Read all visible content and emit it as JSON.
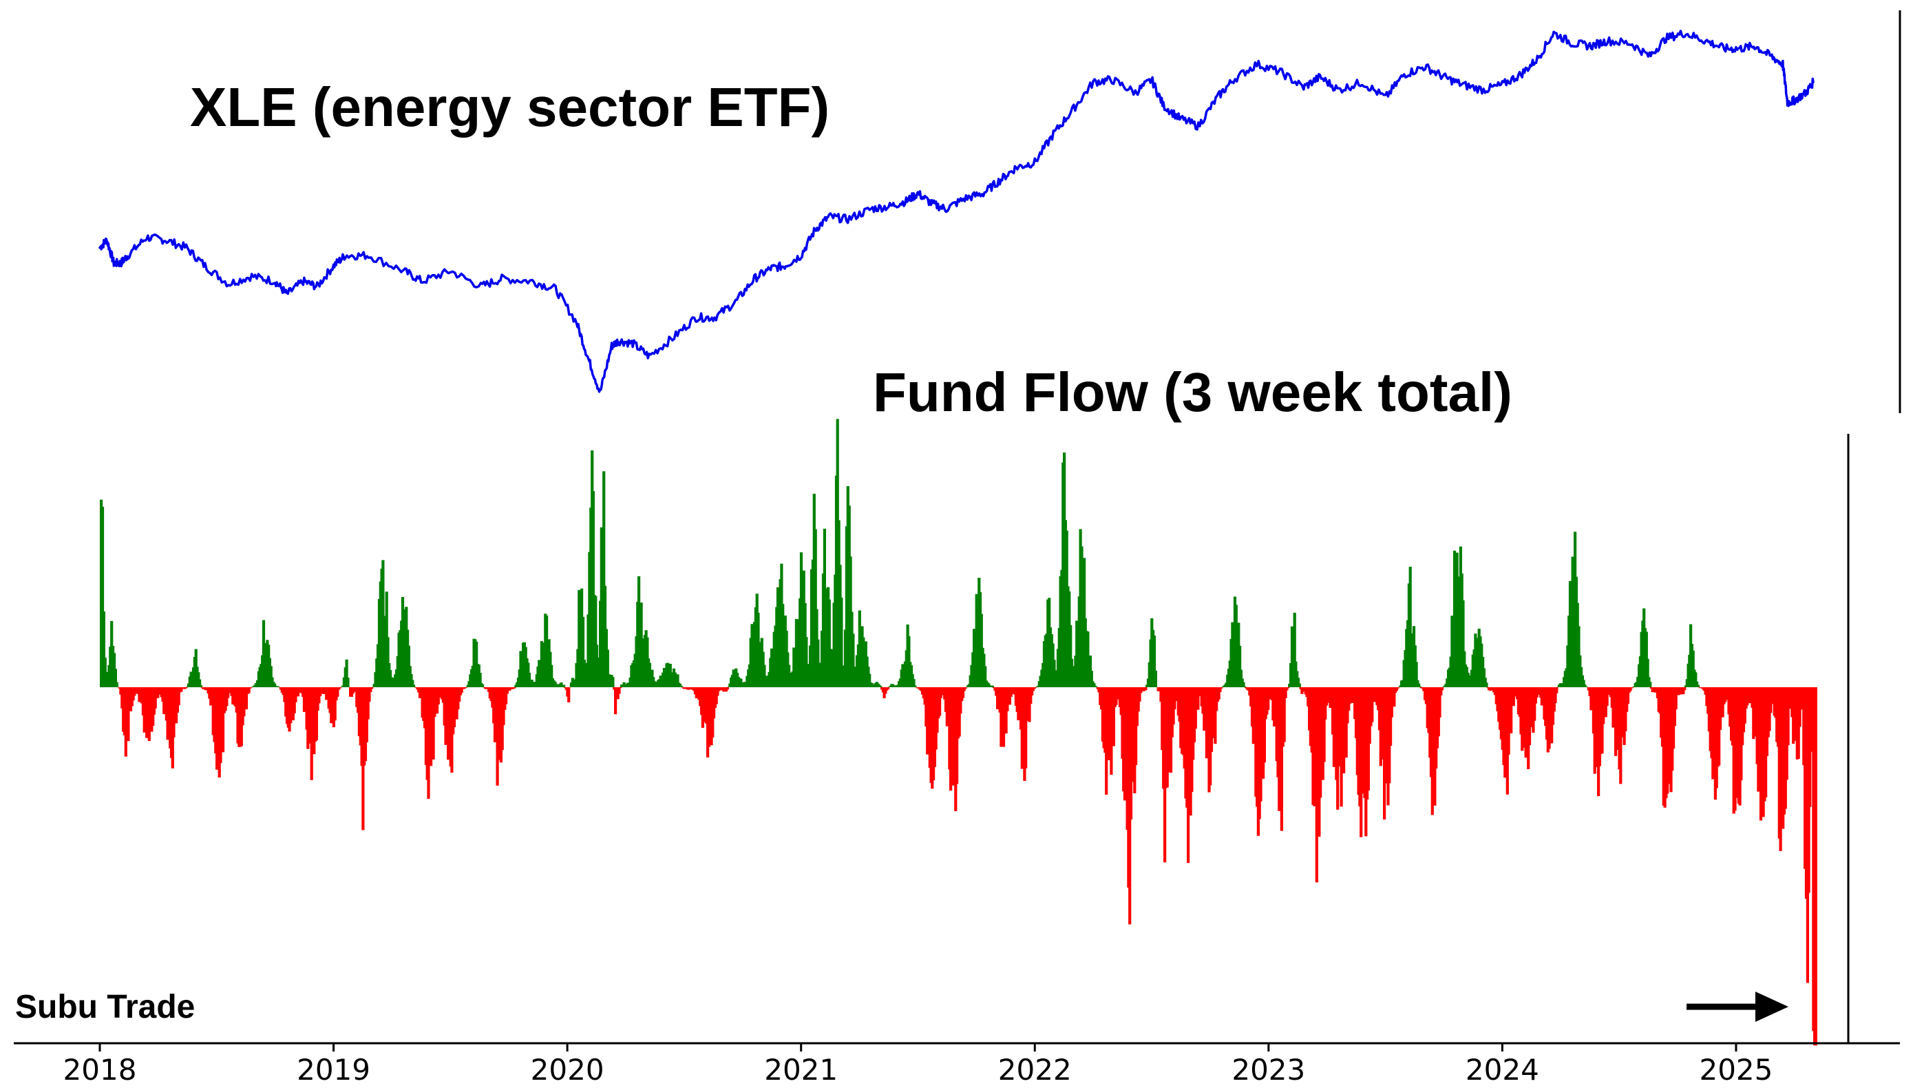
{
  "chart_data": [
    {
      "type": "line",
      "title": "XLE (energy sector ETF)",
      "xlabel": "",
      "ylabel": "",
      "xlim": [
        2018.0,
        2025.33
      ],
      "grid": false,
      "line_color": "#0000ee",
      "series": [
        {
          "x": [
            2018.0,
            2018.03,
            2018.06,
            2018.09,
            2018.12,
            2018.2,
            2018.28,
            2018.37,
            2018.45,
            2018.55,
            2018.65,
            2018.75,
            2018.8,
            2018.87,
            2018.93,
            2019.0,
            2019.05,
            2019.15,
            2019.3,
            2019.38,
            2019.5,
            2019.63,
            2019.72,
            2019.85,
            2019.95,
            2020.04,
            2020.09,
            2020.14,
            2020.19,
            2020.22,
            2020.28,
            2020.35,
            2020.45,
            2020.55,
            2020.63,
            2020.72,
            2020.8,
            2020.87,
            2020.93,
            2021.0,
            2021.06,
            2021.12,
            2021.2,
            2021.3,
            2021.38,
            2021.45,
            2021.5,
            2021.56,
            2021.62,
            2021.7,
            2021.78,
            2021.85,
            2021.92,
            2022.0,
            2022.08,
            2022.16,
            2022.25,
            2022.33,
            2022.43,
            2022.5,
            2022.55,
            2022.62,
            2022.7,
            2022.78,
            2022.85,
            2022.95,
            2023.05,
            2023.15,
            2023.22,
            2023.3,
            2023.4,
            2023.5,
            2023.58,
            2023.67,
            2023.75,
            2023.83,
            2023.92,
            2024.0,
            2024.08,
            2024.15,
            2024.22,
            2024.3,
            2024.38,
            2024.45,
            2024.55,
            2024.63,
            2024.7,
            2024.78,
            2024.87,
            2024.95,
            2025.02,
            2025.08,
            2025.15,
            2025.2,
            2025.22,
            2025.25,
            2025.3,
            2025.33
          ],
          "values": [
            73,
            76,
            67,
            67,
            70,
            77,
            76,
            73,
            66,
            59,
            62,
            60,
            55,
            60,
            58,
            66,
            70,
            70,
            64,
            60,
            64,
            58,
            61,
            60,
            57,
            44,
            30,
            17,
            35,
            37,
            36,
            31,
            38,
            46,
            46,
            52,
            61,
            65,
            66,
            70,
            80,
            85,
            84,
            88,
            89,
            91,
            94,
            90,
            88,
            92,
            94,
            99,
            104,
            106,
            117,
            126,
            137,
            138,
            133,
            138,
            128,
            123,
            120,
            131,
            138,
            144,
            141,
            135,
            139,
            134,
            137,
            131,
            140,
            143,
            139,
            136,
            134,
            136,
            140,
            146,
            156,
            152,
            151,
            153,
            152,
            147,
            154,
            156,
            153,
            150,
            150,
            151,
            147,
            144,
            129,
            130,
            133,
            137
          ]
        }
      ]
    },
    {
      "type": "bar",
      "title": "Fund Flow (3 week total)",
      "xlabel": "",
      "ylabel": "",
      "xlim": [
        2018.0,
        2025.33
      ],
      "x_ticks": [
        "2018",
        "2019",
        "2020",
        "2021",
        "2022",
        "2023",
        "2024",
        "2025"
      ],
      "grid": false,
      "positive_color": "#008000",
      "negative_color": "#ff0000",
      "series": [
        {
          "x": [
            2018.0,
            2018.05,
            2018.1,
            2018.2,
            2018.3,
            2018.4,
            2018.5,
            2018.6,
            2018.7,
            2018.8,
            2018.9,
            2019.0,
            2019.05,
            2019.12,
            2019.2,
            2019.3,
            2019.4,
            2019.5,
            2019.6,
            2019.7,
            2019.8,
            2019.9,
            2020.0,
            2020.05,
            2020.1,
            2020.15,
            2020.2,
            2020.3,
            2020.45,
            2020.6,
            2020.7,
            2020.8,
            2020.9,
            2021.0,
            2021.05,
            2021.1,
            2021.15,
            2021.2,
            2021.25,
            2021.35,
            2021.45,
            2021.55,
            2021.65,
            2021.75,
            2021.85,
            2021.95,
            2022.05,
            2022.12,
            2022.2,
            2022.3,
            2022.4,
            2022.5,
            2022.55,
            2022.65,
            2022.75,
            2022.85,
            2022.95,
            2023.05,
            2023.1,
            2023.2,
            2023.3,
            2023.4,
            2023.5,
            2023.6,
            2023.7,
            2023.8,
            2023.9,
            2024.0,
            2024.1,
            2024.2,
            2024.3,
            2024.4,
            2024.5,
            2024.6,
            2024.7,
            2024.8,
            2024.9,
            2025.0,
            2025.1,
            2025.2,
            2025.25,
            2025.3,
            2025.33
          ],
          "values": [
            72,
            20,
            -25,
            -18,
            -30,
            15,
            -35,
            -20,
            25,
            -15,
            -30,
            -12,
            10,
            -55,
            50,
            30,
            -40,
            -35,
            20,
            -35,
            15,
            25,
            -5,
            40,
            85,
            70,
            -10,
            35,
            8,
            -25,
            5,
            30,
            45,
            55,
            70,
            60,
            90,
            80,
            30,
            -5,
            20,
            -35,
            -45,
            40,
            -20,
            -30,
            30,
            80,
            60,
            -40,
            -75,
            30,
            -60,
            -55,
            -35,
            40,
            -50,
            -45,
            30,
            -75,
            -40,
            -60,
            -45,
            40,
            -50,
            70,
            20,
            -45,
            -30,
            -25,
            55,
            -40,
            -35,
            30,
            -70,
            20,
            -35,
            -55,
            -45,
            -80,
            -30,
            -110,
            -145
          ]
        }
      ]
    },
    {
      "type": "annotation",
      "text": "Subu Trade"
    }
  ]
}
